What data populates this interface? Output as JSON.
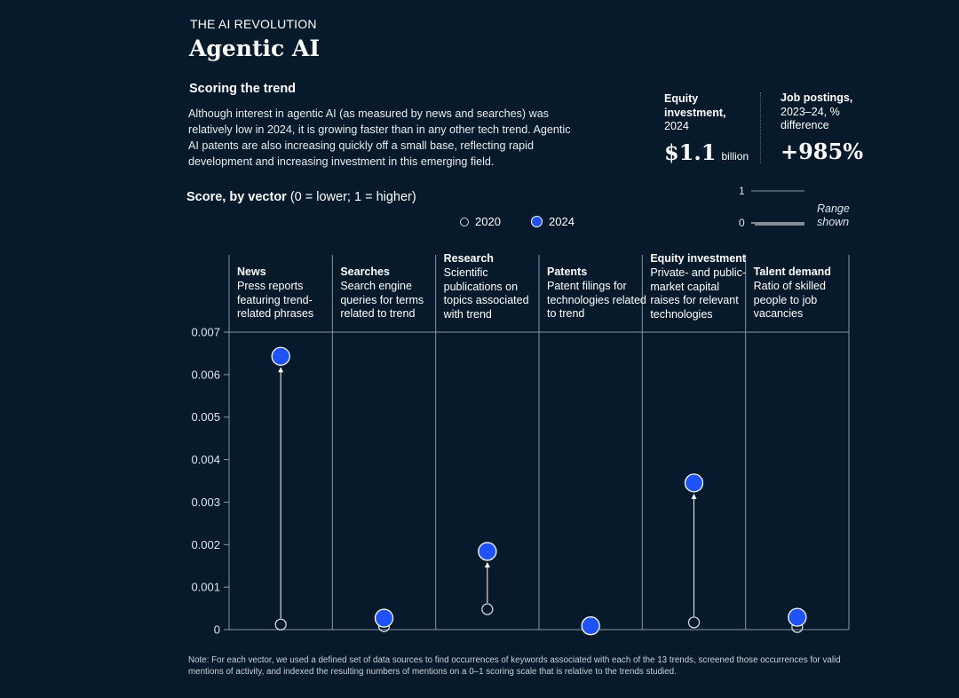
{
  "header": {
    "kicker": "THE AI REVOLUTION",
    "title": "Agentic AI",
    "section_heading": "Scoring the trend",
    "intro": "Although interest in agentic AI (as measured by news and searches) was relatively low in 2024, it is growing faster than in any other tech trend. Agentic AI patents are also increasing quickly off a small base, reflecting rapid development and increasing investment in this emerging field."
  },
  "stats": {
    "equity": {
      "label_bold": "Equity investment,",
      "label_rest": "2024",
      "value": "$1.1",
      "unit": "billion"
    },
    "jobs": {
      "label_bold": "Job postings,",
      "label_rest": "2023–24, % difference",
      "value": "+985%"
    }
  },
  "chart_heading": {
    "bold": "Score, by vector",
    "rest": " (0 = lower; 1 = higher)"
  },
  "legend": {
    "a": "2020",
    "b": "2024"
  },
  "range_key": {
    "top": "1",
    "bottom": "0",
    "label": "Range shown"
  },
  "colors": {
    "background": "#061a2c",
    "marker_2024": "#1f52ff",
    "axis": "#8796a5"
  },
  "chart_data": {
    "type": "scatter",
    "ylim": [
      0,
      0.007
    ],
    "yticks": [
      "0",
      "0.001",
      "0.002",
      "0.003",
      "0.004",
      "0.005",
      "0.006",
      "0.007"
    ],
    "categories": [
      {
        "name": "News",
        "desc": "Press reports featuring trend-related phrases"
      },
      {
        "name": "Searches",
        "desc": "Search engine queries for terms related to trend"
      },
      {
        "name": "Research",
        "desc": "Scientific publications on topics associated with trend"
      },
      {
        "name": "Patents",
        "desc": "Patent filings for technologies related to trend"
      },
      {
        "name": "Equity investment",
        "desc": "Private- and public-market capital raises for relevant technologies"
      },
      {
        "name": "Talent demand",
        "desc": "Ratio of skilled people to job vacancies"
      }
    ],
    "series": [
      {
        "name": "2020",
        "values": [
          0.00012,
          8e-05,
          0.00048,
          3e-05,
          0.00017,
          6e-05
        ]
      },
      {
        "name": "2024",
        "values": [
          0.00643,
          0.00027,
          0.00184,
          9e-05,
          0.00345,
          0.00029
        ]
      }
    ]
  },
  "note": "Note: For each vector, we used a defined set of data sources to find occurrences of keywords associated with each of the 13 trends, screened those occurrences for valid mentions of activity, and indexed the resulting numbers of mentions on a 0–1 scoring scale that is relative to the trends studied."
}
